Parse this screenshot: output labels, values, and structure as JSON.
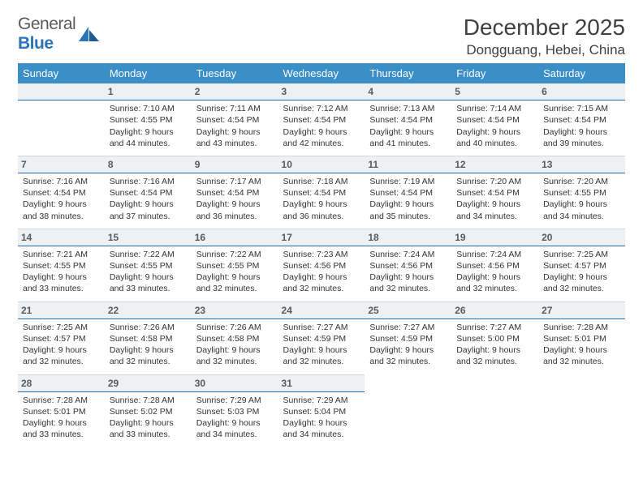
{
  "brand": {
    "word1": "General",
    "word2": "Blue"
  },
  "title": "December 2025",
  "location": "Dongguang, Hebei, China",
  "colors": {
    "header_bg": "#3b8fc9",
    "header_text": "#ffffff",
    "daynum_bg": "#eef1f4",
    "daynum_border": "#2a6aa8",
    "body_text": "#333333",
    "title_text": "#404040",
    "logo_gray": "#5a5a5a",
    "logo_blue": "#2a74b8",
    "page_bg": "#ffffff"
  },
  "typography": {
    "title_fontsize": 28,
    "location_fontsize": 17,
    "header_fontsize": 13,
    "cell_fontsize": 10.5,
    "daynum_fontsize": 12
  },
  "days_of_week": [
    "Sunday",
    "Monday",
    "Tuesday",
    "Wednesday",
    "Thursday",
    "Friday",
    "Saturday"
  ],
  "weeks": [
    [
      null,
      {
        "n": "1",
        "sr": "Sunrise: 7:10 AM",
        "ss": "Sunset: 4:55 PM",
        "d1": "Daylight: 9 hours",
        "d2": "and 44 minutes."
      },
      {
        "n": "2",
        "sr": "Sunrise: 7:11 AM",
        "ss": "Sunset: 4:54 PM",
        "d1": "Daylight: 9 hours",
        "d2": "and 43 minutes."
      },
      {
        "n": "3",
        "sr": "Sunrise: 7:12 AM",
        "ss": "Sunset: 4:54 PM",
        "d1": "Daylight: 9 hours",
        "d2": "and 42 minutes."
      },
      {
        "n": "4",
        "sr": "Sunrise: 7:13 AM",
        "ss": "Sunset: 4:54 PM",
        "d1": "Daylight: 9 hours",
        "d2": "and 41 minutes."
      },
      {
        "n": "5",
        "sr": "Sunrise: 7:14 AM",
        "ss": "Sunset: 4:54 PM",
        "d1": "Daylight: 9 hours",
        "d2": "and 40 minutes."
      },
      {
        "n": "6",
        "sr": "Sunrise: 7:15 AM",
        "ss": "Sunset: 4:54 PM",
        "d1": "Daylight: 9 hours",
        "d2": "and 39 minutes."
      }
    ],
    [
      {
        "n": "7",
        "sr": "Sunrise: 7:16 AM",
        "ss": "Sunset: 4:54 PM",
        "d1": "Daylight: 9 hours",
        "d2": "and 38 minutes."
      },
      {
        "n": "8",
        "sr": "Sunrise: 7:16 AM",
        "ss": "Sunset: 4:54 PM",
        "d1": "Daylight: 9 hours",
        "d2": "and 37 minutes."
      },
      {
        "n": "9",
        "sr": "Sunrise: 7:17 AM",
        "ss": "Sunset: 4:54 PM",
        "d1": "Daylight: 9 hours",
        "d2": "and 36 minutes."
      },
      {
        "n": "10",
        "sr": "Sunrise: 7:18 AM",
        "ss": "Sunset: 4:54 PM",
        "d1": "Daylight: 9 hours",
        "d2": "and 36 minutes."
      },
      {
        "n": "11",
        "sr": "Sunrise: 7:19 AM",
        "ss": "Sunset: 4:54 PM",
        "d1": "Daylight: 9 hours",
        "d2": "and 35 minutes."
      },
      {
        "n": "12",
        "sr": "Sunrise: 7:20 AM",
        "ss": "Sunset: 4:54 PM",
        "d1": "Daylight: 9 hours",
        "d2": "and 34 minutes."
      },
      {
        "n": "13",
        "sr": "Sunrise: 7:20 AM",
        "ss": "Sunset: 4:55 PM",
        "d1": "Daylight: 9 hours",
        "d2": "and 34 minutes."
      }
    ],
    [
      {
        "n": "14",
        "sr": "Sunrise: 7:21 AM",
        "ss": "Sunset: 4:55 PM",
        "d1": "Daylight: 9 hours",
        "d2": "and 33 minutes."
      },
      {
        "n": "15",
        "sr": "Sunrise: 7:22 AM",
        "ss": "Sunset: 4:55 PM",
        "d1": "Daylight: 9 hours",
        "d2": "and 33 minutes."
      },
      {
        "n": "16",
        "sr": "Sunrise: 7:22 AM",
        "ss": "Sunset: 4:55 PM",
        "d1": "Daylight: 9 hours",
        "d2": "and 32 minutes."
      },
      {
        "n": "17",
        "sr": "Sunrise: 7:23 AM",
        "ss": "Sunset: 4:56 PM",
        "d1": "Daylight: 9 hours",
        "d2": "and 32 minutes."
      },
      {
        "n": "18",
        "sr": "Sunrise: 7:24 AM",
        "ss": "Sunset: 4:56 PM",
        "d1": "Daylight: 9 hours",
        "d2": "and 32 minutes."
      },
      {
        "n": "19",
        "sr": "Sunrise: 7:24 AM",
        "ss": "Sunset: 4:56 PM",
        "d1": "Daylight: 9 hours",
        "d2": "and 32 minutes."
      },
      {
        "n": "20",
        "sr": "Sunrise: 7:25 AM",
        "ss": "Sunset: 4:57 PM",
        "d1": "Daylight: 9 hours",
        "d2": "and 32 minutes."
      }
    ],
    [
      {
        "n": "21",
        "sr": "Sunrise: 7:25 AM",
        "ss": "Sunset: 4:57 PM",
        "d1": "Daylight: 9 hours",
        "d2": "and 32 minutes."
      },
      {
        "n": "22",
        "sr": "Sunrise: 7:26 AM",
        "ss": "Sunset: 4:58 PM",
        "d1": "Daylight: 9 hours",
        "d2": "and 32 minutes."
      },
      {
        "n": "23",
        "sr": "Sunrise: 7:26 AM",
        "ss": "Sunset: 4:58 PM",
        "d1": "Daylight: 9 hours",
        "d2": "and 32 minutes."
      },
      {
        "n": "24",
        "sr": "Sunrise: 7:27 AM",
        "ss": "Sunset: 4:59 PM",
        "d1": "Daylight: 9 hours",
        "d2": "and 32 minutes."
      },
      {
        "n": "25",
        "sr": "Sunrise: 7:27 AM",
        "ss": "Sunset: 4:59 PM",
        "d1": "Daylight: 9 hours",
        "d2": "and 32 minutes."
      },
      {
        "n": "26",
        "sr": "Sunrise: 7:27 AM",
        "ss": "Sunset: 5:00 PM",
        "d1": "Daylight: 9 hours",
        "d2": "and 32 minutes."
      },
      {
        "n": "27",
        "sr": "Sunrise: 7:28 AM",
        "ss": "Sunset: 5:01 PM",
        "d1": "Daylight: 9 hours",
        "d2": "and 32 minutes."
      }
    ],
    [
      {
        "n": "28",
        "sr": "Sunrise: 7:28 AM",
        "ss": "Sunset: 5:01 PM",
        "d1": "Daylight: 9 hours",
        "d2": "and 33 minutes."
      },
      {
        "n": "29",
        "sr": "Sunrise: 7:28 AM",
        "ss": "Sunset: 5:02 PM",
        "d1": "Daylight: 9 hours",
        "d2": "and 33 minutes."
      },
      {
        "n": "30",
        "sr": "Sunrise: 7:29 AM",
        "ss": "Sunset: 5:03 PM",
        "d1": "Daylight: 9 hours",
        "d2": "and 34 minutes."
      },
      {
        "n": "31",
        "sr": "Sunrise: 7:29 AM",
        "ss": "Sunset: 5:04 PM",
        "d1": "Daylight: 9 hours",
        "d2": "and 34 minutes."
      },
      null,
      null,
      null
    ]
  ]
}
